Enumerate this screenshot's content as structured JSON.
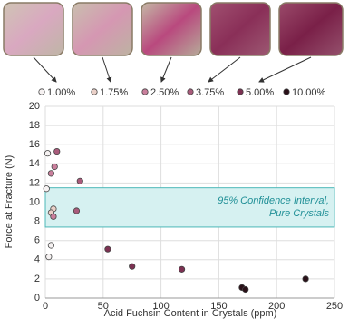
{
  "chart_data": {
    "type": "scatter",
    "x_label": "Acid Fuchsin Content in Crystals (ppm)",
    "y_label": "Force at Fracture (N)",
    "xlim": [
      0,
      250
    ],
    "xticks": [
      0,
      50,
      100,
      150,
      200,
      250
    ],
    "ylim": [
      0,
      20
    ],
    "yticks": [
      0,
      2,
      4,
      6,
      8,
      10,
      12,
      14,
      16,
      18,
      20
    ],
    "grid": true,
    "band": {
      "ymin": 7.4,
      "ymax": 11.5,
      "color": "#d6f1f1",
      "lines": [
        "95% Confidence Interval,",
        "Pure Crystals"
      ]
    },
    "series": [
      {
        "name": "1.00%",
        "color": "#f6f2f2",
        "x": [
          2,
          1,
          3,
          5
        ],
        "values": [
          15.1,
          11.4,
          4.3,
          5.5
        ]
      },
      {
        "name": "1.75%",
        "color": "#ead0c8",
        "x": [
          7,
          5
        ],
        "values": [
          9.3,
          8.9
        ]
      },
      {
        "name": "2.50%",
        "color": "#c97f9c",
        "x": [
          5,
          8,
          7
        ],
        "values": [
          13.0,
          13.7,
          8.5
        ]
      },
      {
        "name": "3.75%",
        "color": "#a95b7b",
        "x": [
          10,
          30,
          27
        ],
        "values": [
          15.3,
          12.2,
          9.1
        ]
      },
      {
        "name": "5.00%",
        "color": "#7c3152",
        "x": [
          54,
          75,
          118
        ],
        "values": [
          5.1,
          3.3,
          3.0
        ]
      },
      {
        "name": "10.00%",
        "color": "#2a1018",
        "x": [
          170,
          173,
          225
        ],
        "values": [
          1.1,
          0.9,
          2.0
        ]
      }
    ]
  }
}
